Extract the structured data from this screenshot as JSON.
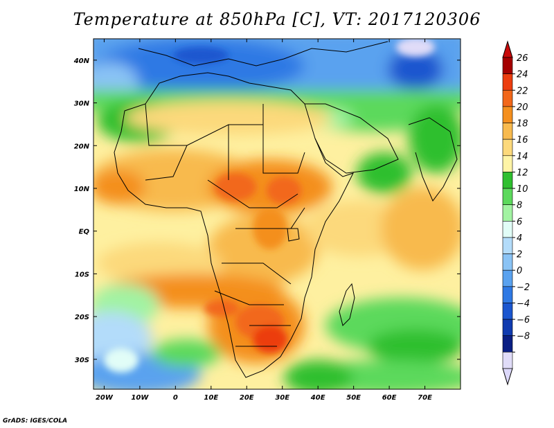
{
  "title": "Temperature at 850hPa [C], VT: 2017120306",
  "credit": "GrADS: IGES/COLA",
  "map": {
    "lon_range": [
      -23,
      80
    ],
    "lat_range": [
      -37,
      45
    ],
    "lon_ticks": [
      {
        "lon": -20,
        "label": "20W"
      },
      {
        "lon": -10,
        "label": "10W"
      },
      {
        "lon": 0,
        "label": "0"
      },
      {
        "lon": 10,
        "label": "10E"
      },
      {
        "lon": 20,
        "label": "20E"
      },
      {
        "lon": 30,
        "label": "30E"
      },
      {
        "lon": 40,
        "label": "40E"
      },
      {
        "lon": 50,
        "label": "50E"
      },
      {
        "lon": 60,
        "label": "60E"
      },
      {
        "lon": 70,
        "label": "70E"
      }
    ],
    "lat_ticks": [
      {
        "lat": 40,
        "label": "40N"
      },
      {
        "lat": 30,
        "label": "30N"
      },
      {
        "lat": 20,
        "label": "20N"
      },
      {
        "lat": 10,
        "label": "10N"
      },
      {
        "lat": 0,
        "label": "EQ"
      },
      {
        "lat": -10,
        "label": "10S"
      },
      {
        "lat": -20,
        "label": "20S"
      },
      {
        "lat": -30,
        "label": "30S"
      }
    ]
  },
  "colorbar": {
    "labels": [
      "26",
      "24",
      "22",
      "20",
      "18",
      "16",
      "14",
      "12",
      "10",
      "8",
      "6",
      "4",
      "2",
      "0",
      "−2",
      "−4",
      "−6",
      "−8"
    ],
    "colors": [
      "#a50000",
      "#ec3d0f",
      "#f2671a",
      "#f48f1e",
      "#f8ba4e",
      "#fcd97b",
      "#fef4a6",
      "#2fbf2f",
      "#5cd95c",
      "#a2f3a2",
      "#e1fdf7",
      "#b3dcfa",
      "#8ac3f5",
      "#5aa2ef",
      "#2f79e4",
      "#1b56cf",
      "#103bb0",
      "#0a1f84",
      "#e0dcf8"
    ],
    "over_color": "#c80a0a",
    "under_color": "#dcd8fa"
  }
}
